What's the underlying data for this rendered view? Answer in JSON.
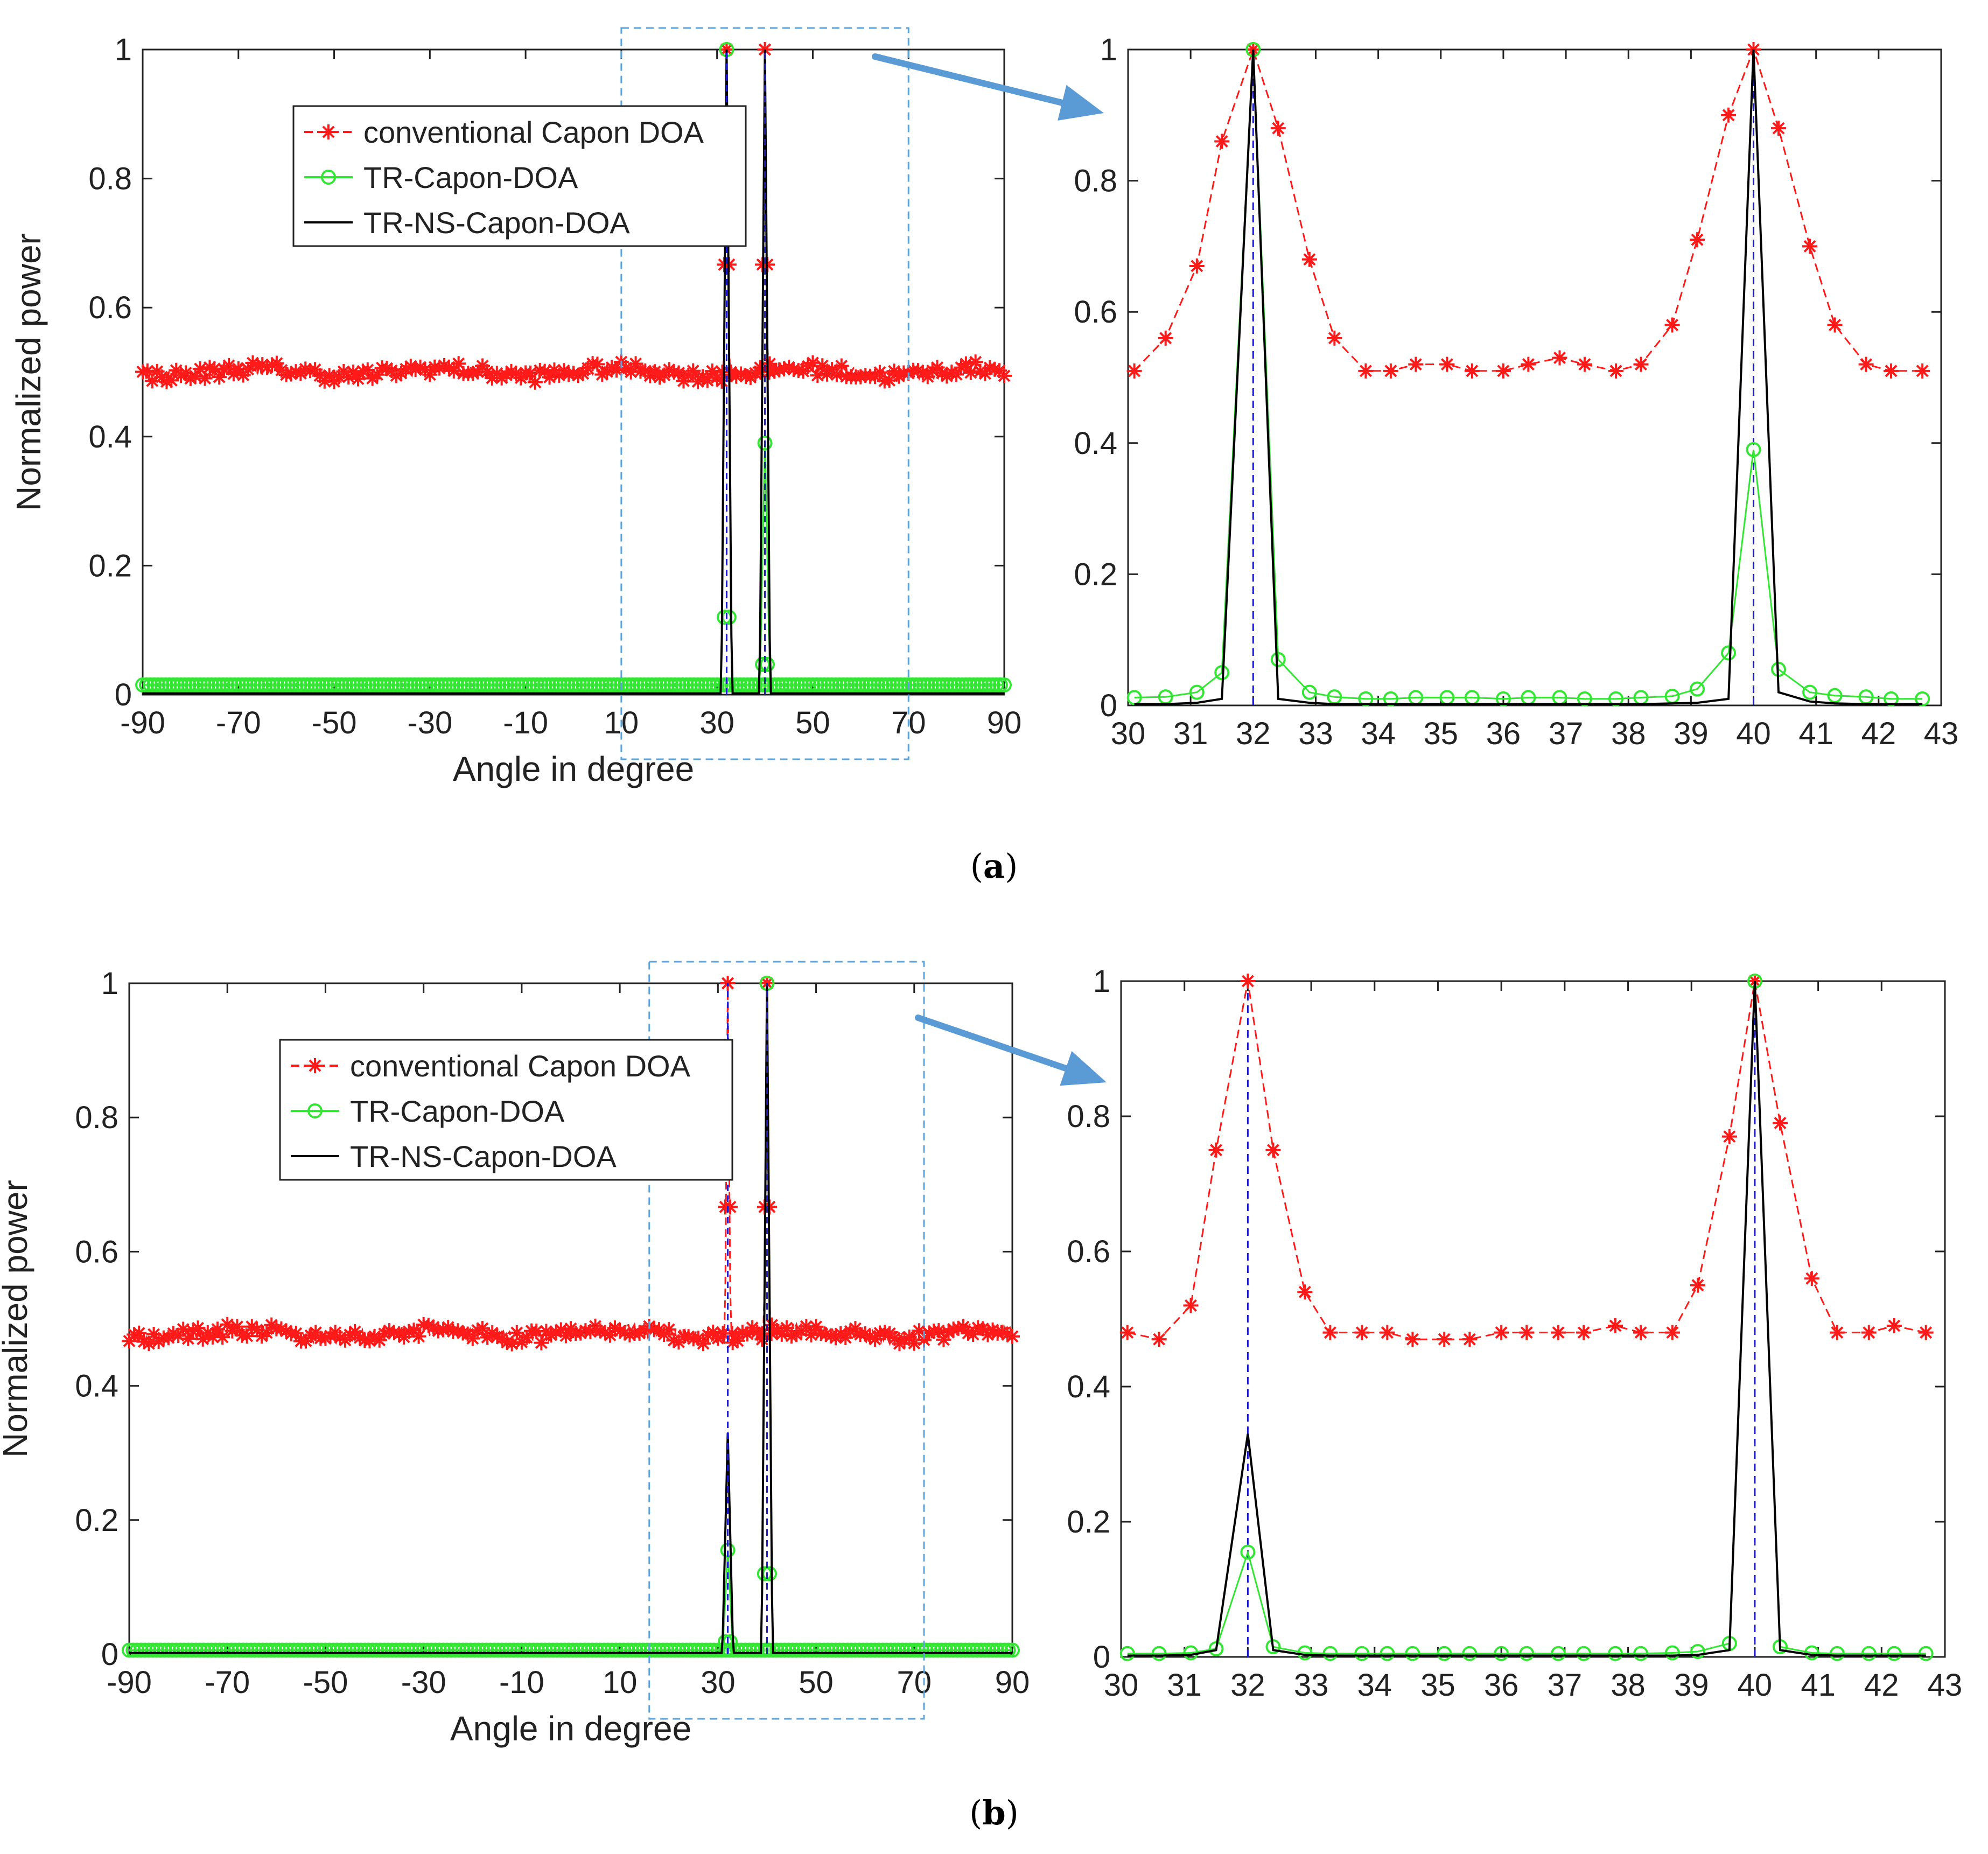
{
  "figure": {
    "captions": [
      "(a)",
      "(b)"
    ],
    "caption_letters": [
      "a",
      "b"
    ]
  },
  "colors": {
    "capon": "#ff1a1a",
    "tr_capon": "#33e633",
    "tr_ns_capon": "#000000",
    "true_doa": "#1a1acc",
    "zoom_box": "#5ba3d9",
    "arrow": "#5b9bd5"
  },
  "chart_data": [
    {
      "id": "a-full",
      "panel": "a",
      "type": "line",
      "xlabel": "Angle in degree",
      "ylabel": "Normalized power",
      "xlim": [
        -90,
        90
      ],
      "ylim": [
        0,
        1
      ],
      "xticks": [
        -90,
        -70,
        -50,
        -30,
        -10,
        10,
        30,
        50,
        70,
        90
      ],
      "yticks": [
        0,
        0.2,
        0.4,
        0.6,
        0.8,
        1
      ],
      "ytick_labels": [
        "0",
        "0.2",
        "0.4",
        "0.6",
        "0.8",
        "1"
      ],
      "legend": {
        "placement": "top-left",
        "entries": [
          "conventional Capon DOA",
          "TR-Capon-DOA",
          "TR-NS-Capon-DOA"
        ]
      },
      "zoom_region": [
        10,
        70
      ],
      "true_doa": [
        32,
        40
      ],
      "series": [
        {
          "name": "conventional Capon DOA",
          "baseline": 0.5,
          "peaks": [
            {
              "x": 32,
              "y": 1.0
            },
            {
              "x": 40,
              "y": 1.0
            }
          ]
        },
        {
          "name": "TR-Capon-DOA",
          "baseline": 0.015,
          "peaks": [
            {
              "x": 32,
              "y": 1.0
            },
            {
              "x": 40,
              "y": 0.39
            }
          ]
        },
        {
          "name": "TR-NS-Capon-DOA",
          "baseline": 0.002,
          "peaks": [
            {
              "x": 32,
              "y": 1.0
            },
            {
              "x": 40,
              "y": 1.0
            }
          ]
        }
      ]
    },
    {
      "id": "a-zoom",
      "panel": "a",
      "type": "line",
      "xlim": [
        30,
        43
      ],
      "ylim": [
        0,
        1
      ],
      "xticks": [
        30,
        31,
        32,
        33,
        34,
        35,
        36,
        37,
        38,
        39,
        40,
        41,
        42,
        43
      ],
      "yticks": [
        0,
        0.2,
        0.4,
        0.6,
        0.8,
        1
      ],
      "ytick_labels": [
        "0",
        "0.2",
        "0.4",
        "0.6",
        "0.8",
        "1"
      ],
      "true_doa": [
        32,
        40
      ],
      "x": [
        30.1,
        30.6,
        31.1,
        31.5,
        32.0,
        32.4,
        32.9,
        33.3,
        33.8,
        34.2,
        34.6,
        35.1,
        35.5,
        36.0,
        36.4,
        36.9,
        37.3,
        37.8,
        38.2,
        38.7,
        39.1,
        39.6,
        40.0,
        40.4,
        40.9,
        41.3,
        41.8,
        42.2,
        42.7
      ],
      "series": [
        {
          "name": "conventional Capon DOA",
          "marker": "star",
          "values": [
            0.51,
            0.56,
            0.67,
            0.86,
            1.0,
            0.88,
            0.68,
            0.56,
            0.51,
            0.51,
            0.52,
            0.52,
            0.51,
            0.51,
            0.52,
            0.53,
            0.52,
            0.51,
            0.52,
            0.58,
            0.71,
            0.9,
            1.0,
            0.88,
            0.7,
            0.58,
            0.52,
            0.51,
            0.51
          ]
        },
        {
          "name": "TR-Capon-DOA",
          "marker": "circle",
          "values": [
            0.012,
            0.013,
            0.02,
            0.05,
            1.0,
            0.07,
            0.02,
            0.013,
            0.01,
            0.01,
            0.012,
            0.012,
            0.012,
            0.01,
            0.012,
            0.012,
            0.01,
            0.01,
            0.012,
            0.014,
            0.025,
            0.08,
            0.39,
            0.055,
            0.02,
            0.015,
            0.013,
            0.01,
            0.01
          ]
        },
        {
          "name": "TR-NS-Capon-DOA",
          "marker": "none",
          "values": [
            0.002,
            0.002,
            0.004,
            0.01,
            1.0,
            0.01,
            0.004,
            0.002,
            0.002,
            0.002,
            0.002,
            0.002,
            0.002,
            0.002,
            0.002,
            0.002,
            0.002,
            0.002,
            0.002,
            0.003,
            0.004,
            0.01,
            1.0,
            0.02,
            0.006,
            0.003,
            0.002,
            0.002,
            0.002
          ]
        }
      ]
    },
    {
      "id": "b-full",
      "panel": "b",
      "type": "line",
      "xlabel": "Angle in degree",
      "ylabel": "Normalized power",
      "xlim": [
        -90,
        90
      ],
      "ylim": [
        0,
        1
      ],
      "xticks": [
        -90,
        -70,
        -50,
        -30,
        -10,
        10,
        30,
        50,
        70,
        90
      ],
      "yticks": [
        0,
        0.2,
        0.4,
        0.6,
        0.8,
        1
      ],
      "ytick_labels": [
        "0",
        "0.2",
        "0.4",
        "0.6",
        "0.8",
        "1"
      ],
      "legend": {
        "placement": "top-left",
        "entries": [
          "conventional Capon DOA",
          "TR-Capon-DOA",
          "TR-NS-Capon-DOA"
        ]
      },
      "zoom_region": [
        16,
        72
      ],
      "true_doa": [
        32,
        40
      ],
      "series": [
        {
          "name": "conventional Capon DOA",
          "baseline": 0.478,
          "peaks": [
            {
              "x": 32,
              "y": 1.0
            },
            {
              "x": 40,
              "y": 1.0
            }
          ]
        },
        {
          "name": "TR-Capon-DOA",
          "baseline": 0.006,
          "peaks": [
            {
              "x": 32,
              "y": 0.155
            },
            {
              "x": 40,
              "y": 1.0
            }
          ]
        },
        {
          "name": "TR-NS-Capon-DOA",
          "baseline": 0.002,
          "peaks": [
            {
              "x": 32,
              "y": 0.33
            },
            {
              "x": 40,
              "y": 1.0
            }
          ]
        }
      ]
    },
    {
      "id": "b-zoom",
      "panel": "b",
      "type": "line",
      "xlim": [
        30,
        43
      ],
      "ylim": [
        0,
        1
      ],
      "xticks": [
        30,
        31,
        32,
        33,
        34,
        35,
        36,
        37,
        38,
        39,
        40,
        41,
        42,
        43
      ],
      "yticks": [
        0,
        0.2,
        0.4,
        0.6,
        0.8,
        1
      ],
      "ytick_labels": [
        "0",
        "0.2",
        "0.4",
        "0.6",
        "0.8",
        "1"
      ],
      "true_doa": [
        32,
        40
      ],
      "x": [
        30.1,
        30.6,
        31.1,
        31.5,
        32.0,
        32.4,
        32.9,
        33.3,
        33.8,
        34.2,
        34.6,
        35.1,
        35.5,
        36.0,
        36.4,
        36.9,
        37.3,
        37.8,
        38.2,
        38.7,
        39.1,
        39.6,
        40.0,
        40.4,
        40.9,
        41.3,
        41.8,
        42.2,
        42.7
      ],
      "series": [
        {
          "name": "conventional Capon DOA",
          "marker": "star",
          "values": [
            0.48,
            0.47,
            0.52,
            0.75,
            1.0,
            0.75,
            0.54,
            0.48,
            0.48,
            0.48,
            0.47,
            0.47,
            0.47,
            0.48,
            0.48,
            0.48,
            0.48,
            0.49,
            0.48,
            0.48,
            0.55,
            0.77,
            1.0,
            0.79,
            0.56,
            0.48,
            0.48,
            0.49,
            0.48
          ]
        },
        {
          "name": "TR-Capon-DOA",
          "marker": "circle",
          "values": [
            0.005,
            0.005,
            0.006,
            0.012,
            0.155,
            0.015,
            0.006,
            0.005,
            0.005,
            0.005,
            0.005,
            0.005,
            0.005,
            0.005,
            0.005,
            0.005,
            0.005,
            0.005,
            0.005,
            0.006,
            0.008,
            0.02,
            1.0,
            0.015,
            0.006,
            0.005,
            0.005,
            0.005,
            0.005
          ]
        },
        {
          "name": "TR-NS-Capon-DOA",
          "marker": "none",
          "values": [
            0.002,
            0.002,
            0.003,
            0.01,
            0.33,
            0.01,
            0.003,
            0.002,
            0.002,
            0.002,
            0.002,
            0.002,
            0.002,
            0.002,
            0.002,
            0.002,
            0.002,
            0.002,
            0.002,
            0.002,
            0.003,
            0.01,
            1.0,
            0.01,
            0.003,
            0.002,
            0.002,
            0.002,
            0.002
          ]
        }
      ]
    }
  ]
}
